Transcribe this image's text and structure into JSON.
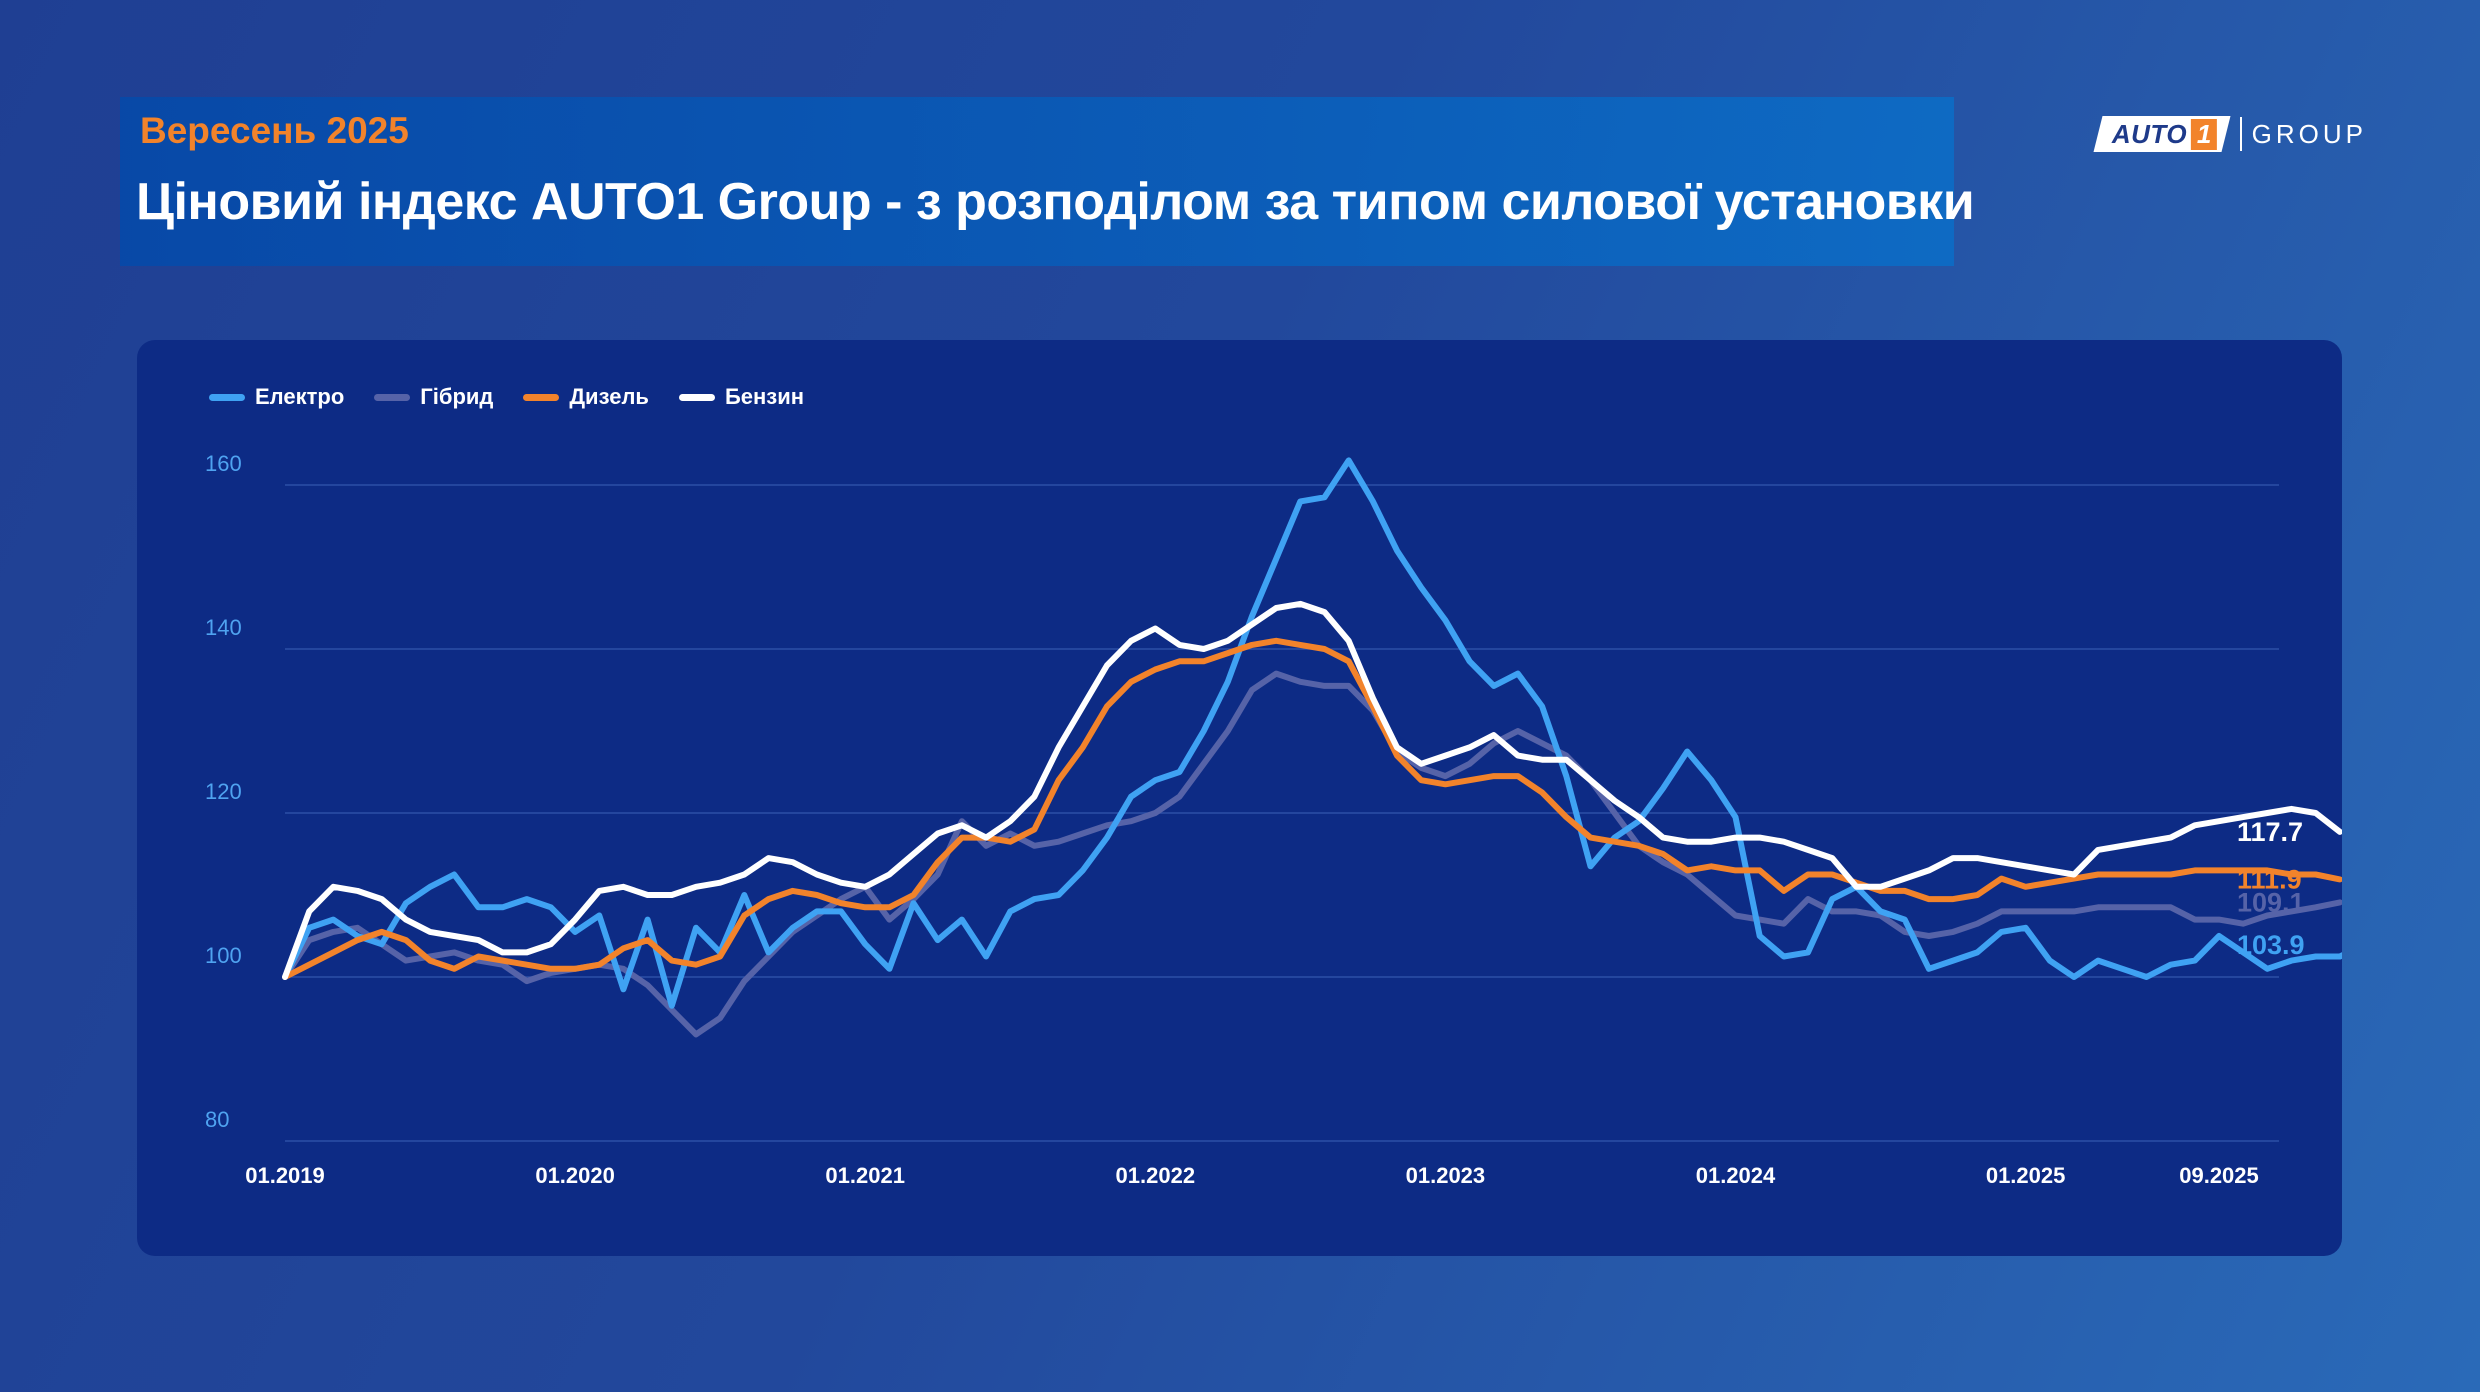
{
  "header": {
    "month": "Вересень 2025",
    "title": "Ціновий індекс AUTO1 Group - з розподілом за типом силової установки"
  },
  "logo": {
    "word": "AUTO",
    "digit": "1",
    "group": "GROUP"
  },
  "colors": {
    "electric": "#3fa2f3",
    "hybrid": "#5663a8",
    "diesel": "#f2832b",
    "petrol": "#ffffff",
    "grid": "#2d4fa6",
    "y_tick": "#4fa3f0",
    "accent": "#f2832b"
  },
  "chart_data": {
    "type": "line",
    "title": "Ціновий індекс AUTO1 Group - з розподілом за типом силової установки",
    "xlabel": "",
    "ylabel": "",
    "ylim": [
      80,
      160
    ],
    "yticks": [
      80,
      100,
      120,
      140,
      160
    ],
    "x_start": "01.2019",
    "x_end": "09.2025",
    "x_tick_labels": [
      "01.2019",
      "01.2020",
      "01.2021",
      "01.2022",
      "01.2023",
      "01.2024",
      "01.2025",
      "09.2025"
    ],
    "legend_position": "top-left",
    "series": [
      {
        "name": "Електро",
        "key": "electric",
        "end_label": "103.9",
        "values": [
          100,
          106,
          107,
          105,
          104,
          109,
          111,
          112.5,
          108.5,
          108.5,
          109.5,
          108.5,
          105.5,
          107.5,
          98.5,
          107,
          96.5,
          106,
          103,
          110,
          103,
          106,
          108,
          108,
          104,
          101,
          109,
          104.5,
          107,
          102.5,
          108,
          109.5,
          110,
          113,
          117,
          122,
          124,
          125,
          130,
          136,
          144,
          151,
          158,
          158.5,
          163,
          158,
          152,
          147.5,
          143.5,
          138.5,
          135.5,
          137,
          133,
          124.5,
          113.5,
          117,
          119,
          123,
          127.5,
          124,
          119.5,
          105,
          102.5,
          103,
          109.5,
          111,
          108,
          107,
          101,
          102,
          103,
          105.5,
          106,
          102,
          100,
          102,
          101,
          100,
          101.5,
          102,
          105,
          103,
          101,
          102,
          102.5,
          102.5,
          103.9
        ]
      },
      {
        "name": "Гібрид",
        "key": "hybrid",
        "end_label": "109.1",
        "values": [
          100,
          104.5,
          105.5,
          106,
          104,
          102,
          102.5,
          103,
          102,
          101.5,
          99.5,
          100.5,
          101,
          101.5,
          101,
          99,
          96,
          93,
          95,
          99.5,
          102.5,
          105.5,
          107.5,
          109.5,
          111,
          107,
          109.5,
          112.5,
          119,
          116,
          117.5,
          116,
          116.5,
          117.5,
          118.5,
          119,
          120,
          122,
          126,
          130,
          135,
          137,
          136,
          135.5,
          135.5,
          132.5,
          127.5,
          125.5,
          124.5,
          126,
          128.5,
          130,
          128.5,
          127,
          124,
          120,
          116,
          114,
          112.5,
          110,
          107.5,
          107,
          106.5,
          109.5,
          108,
          108,
          107.5,
          105.5,
          105,
          105.5,
          106.5,
          108,
          108,
          108,
          108,
          108.5,
          108.5,
          108.5,
          108.5,
          107,
          107,
          106.5,
          107.5,
          108,
          108.5,
          109.1
        ]
      },
      {
        "name": "Дизель",
        "key": "diesel",
        "end_label": "111.9",
        "values": [
          100,
          101.5,
          103,
          104.5,
          105.5,
          104.5,
          102,
          101,
          102.5,
          102,
          101.5,
          101,
          101,
          101.5,
          103.5,
          104.5,
          102,
          101.5,
          102.5,
          107.5,
          109.5,
          110.5,
          110,
          109,
          108.5,
          108.5,
          110,
          114,
          117,
          117,
          116.5,
          118,
          124,
          128,
          133,
          136,
          137.5,
          138.5,
          138.5,
          139.5,
          140.5,
          141,
          140.5,
          140,
          138.5,
          133,
          127,
          124,
          123.5,
          124,
          124.5,
          124.5,
          122.5,
          119.5,
          117,
          116.5,
          116,
          115,
          113,
          113.5,
          113,
          113,
          110.5,
          112.5,
          112.5,
          111.5,
          110.5,
          110.5,
          109.5,
          109.5,
          110,
          112,
          111,
          111.5,
          112,
          112.5,
          112.5,
          112.5,
          112.5,
          113,
          113,
          113,
          113,
          112.5,
          112.5,
          111.9
        ]
      },
      {
        "name": "Бензин",
        "key": "petrol",
        "end_label": "117.7",
        "values": [
          100,
          108,
          111,
          110.5,
          109.5,
          107,
          105.5,
          105,
          104.5,
          103,
          103,
          104,
          107,
          110.5,
          111,
          110,
          110,
          111,
          111.5,
          112.5,
          114.5,
          114,
          112.5,
          111.5,
          111,
          112.5,
          115,
          117.5,
          118.5,
          117,
          119,
          122,
          128,
          133,
          138,
          141,
          142.5,
          140.5,
          140,
          141,
          143,
          145,
          145.5,
          144.5,
          141,
          134,
          128,
          126,
          127,
          128,
          129.5,
          127,
          126.5,
          126.5,
          124,
          121.5,
          119.5,
          117,
          116.5,
          116.5,
          117,
          117,
          116.5,
          115.5,
          114.5,
          111,
          111,
          112,
          113,
          114.5,
          114.5,
          114,
          113.5,
          113,
          112.5,
          115.5,
          116,
          116.5,
          117,
          118.5,
          119,
          119.5,
          120,
          120.5,
          120,
          117.7
        ]
      }
    ]
  }
}
